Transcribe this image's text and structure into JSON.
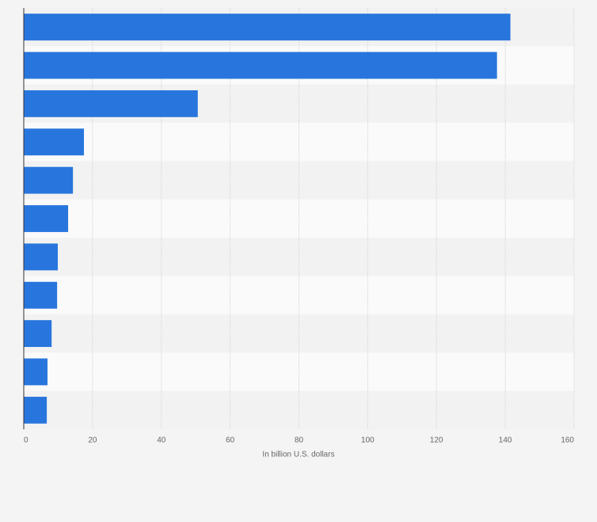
{
  "chart_data": {
    "type": "barh",
    "xlabel": "In billion U.S. dollars",
    "values": [
      141.5,
      137.6,
      50.6,
      17.5,
      14.3,
      12.9,
      9.9,
      9.7,
      8.1,
      6.9,
      6.7
    ],
    "color": "#2876dd",
    "xlim": [
      0,
      160
    ],
    "xticks": [
      0,
      20,
      40,
      60,
      80,
      100,
      120,
      140,
      160
    ],
    "grid": true
  }
}
